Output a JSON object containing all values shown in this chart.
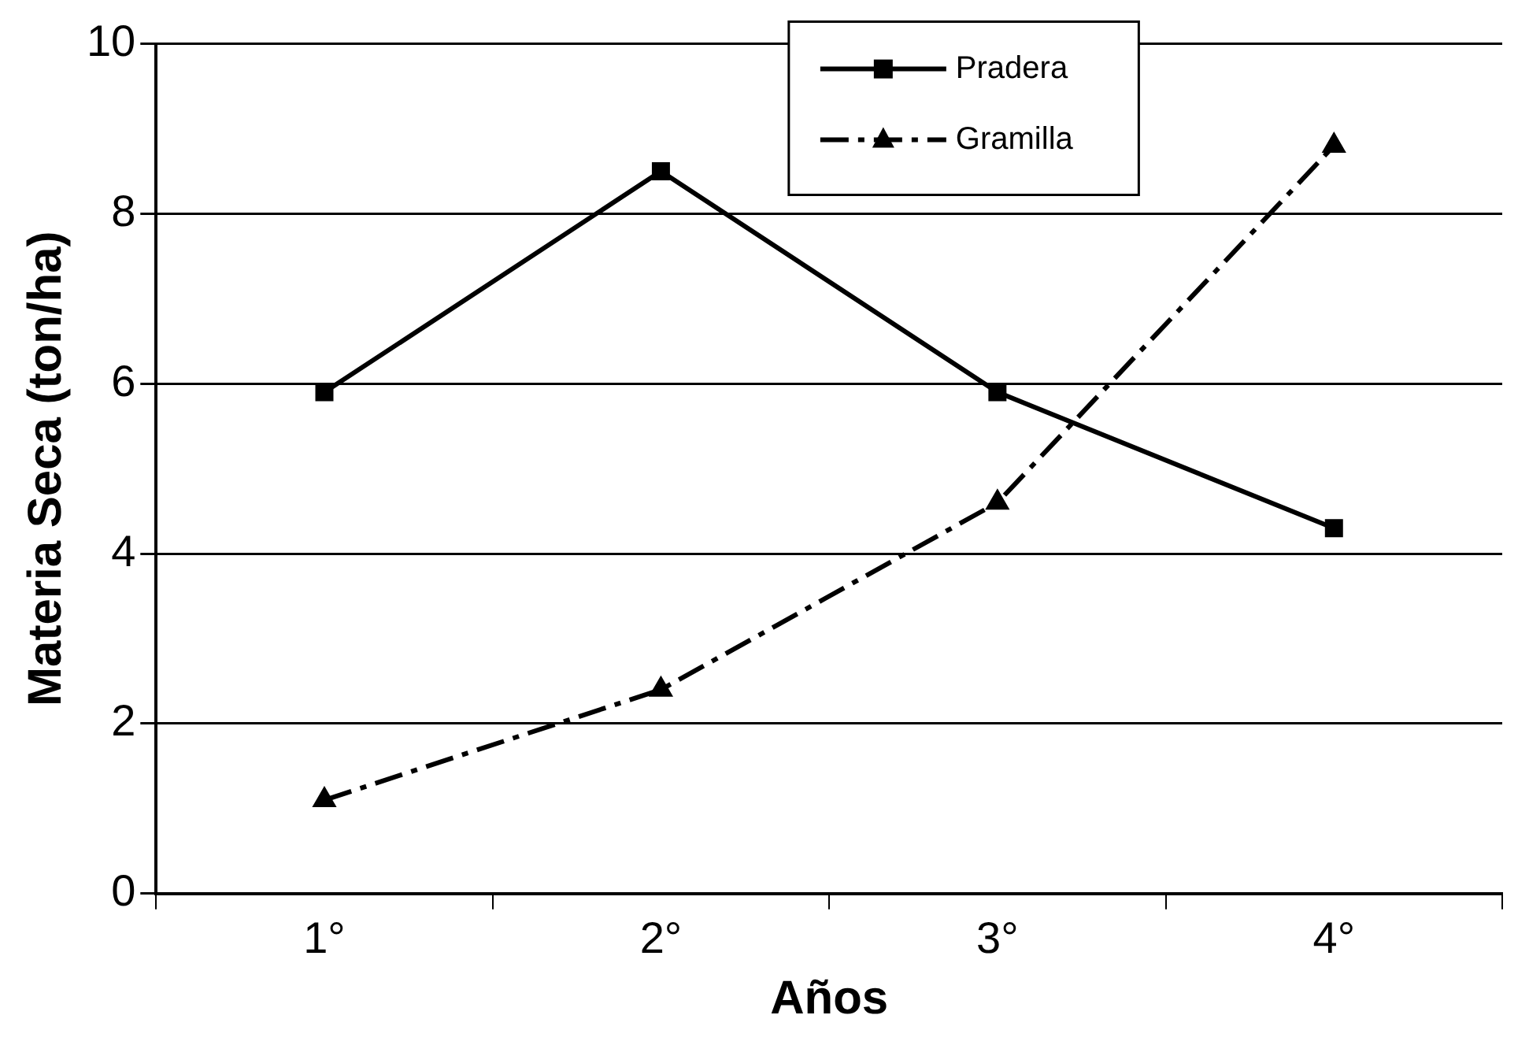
{
  "chart_data": {
    "type": "line",
    "xlabel": "Años",
    "ylabel": "Materia Seca (ton/ha)",
    "categories": [
      "1°",
      "2°",
      "3°",
      "4°"
    ],
    "series": [
      {
        "name": "Pradera",
        "color": "#000000",
        "values": [
          5.9,
          8.5,
          5.9,
          4.3
        ],
        "marker": "square",
        "line_style": "solid"
      },
      {
        "name": "Gramilla",
        "color": "#000000",
        "values": [
          1.1,
          2.4,
          4.6,
          8.8
        ],
        "marker": "triangle",
        "line_style": "dashed"
      }
    ],
    "ylim": [
      0,
      10
    ],
    "yticks": [
      0,
      2,
      4,
      6,
      8,
      10
    ],
    "grid": "y",
    "legend": "top right"
  }
}
